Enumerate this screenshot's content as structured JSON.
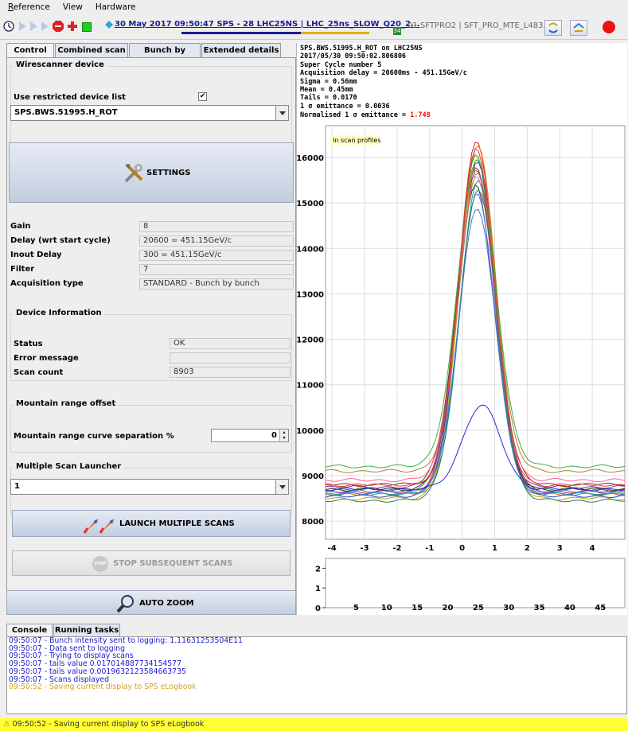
{
  "menu": [
    "Reference",
    "View",
    "Hardware"
  ],
  "toolbar": {
    "timestamp_link": "30 May 2017  09:50:47  SPS - 28 LHC25NS | LHC_25ns_SLOW_Q20_2...",
    "cycle_count": "34",
    "user_label": "01 SFTPRO2 | SFT_PRO_MTE_L483...",
    "icons": [
      "clock-icon",
      "play-icon",
      "step-icon",
      "pause-icon",
      "stop-icon",
      "add-icon",
      "green-square-icon",
      "swap-icon",
      "sync-icon",
      "record-icon"
    ],
    "record_color": "#ee1111"
  },
  "tabs": [
    "Control",
    "Combined scan",
    "Bunch by Bunch",
    "Extended details"
  ],
  "wirescanner": {
    "group_title": "Wirescanner device",
    "restricted_label": "Use restricted device list",
    "restricted_checked": true,
    "device_selected": "SPS.BWS.51995.H_ROT"
  },
  "settings_label": "SETTINGS",
  "params": [
    {
      "label": "Gain",
      "value": "8"
    },
    {
      "label": "Delay (wrt start cycle)",
      "value": "20600 = 451.15GeV/c"
    },
    {
      "label": "Inout Delay",
      "value": "300 = 451.15GeV/c"
    },
    {
      "label": "Filter",
      "value": "7"
    },
    {
      "label": "Acquisition type",
      "value": "STANDARD - Bunch by bunch"
    }
  ],
  "device_info": {
    "group_title": "Device Information",
    "rows": [
      {
        "label": "Status",
        "value": "OK"
      },
      {
        "label": "Error message",
        "value": ""
      },
      {
        "label": "Scan count",
        "value": "8903"
      }
    ]
  },
  "mountain": {
    "group_title": "Mountain range offset",
    "label": "Mountain range curve separation %",
    "value": "0"
  },
  "launcher": {
    "group_title": "Multiple Scan Launcher",
    "selected": "1",
    "launch_label": "LAUNCH MULTIPLE SCANS",
    "stop_label": "STOP SUBSEQUENT SCANS",
    "stop_icon_text": "STOP"
  },
  "auto_zoom_label": "AUTO ZOOM",
  "info": {
    "line1": "SPS.BWS.51995.H_ROT on LHC25NS",
    "line2": "2017/05/30 09:50:02.806806",
    "line3": "Super Cycle number 5",
    "line4": "Acquisition delay = 20600ms  - 451.15GeV/c",
    "line5": "Sigma = 0.56mm",
    "line6": "Mean = 0.45mm",
    "line7": "Tails = 0.0170",
    "line8": "1 σ emittance = 0.0036",
    "line9_label": "Normalised 1 σ emittance = ",
    "line9_value": "1.748",
    "value_color": "#ee1111"
  },
  "chart_data": [
    {
      "type": "line",
      "annotation": "In scan profiles",
      "xlim": [
        -4.2,
        5.0
      ],
      "ylim": [
        7600,
        16700
      ],
      "xticks": [
        -4,
        -3,
        -2,
        -1,
        0,
        1,
        2,
        3,
        4
      ],
      "yticks": [
        8000,
        9000,
        10000,
        11000,
        12000,
        13000,
        14000,
        15000,
        16000
      ],
      "grid": true,
      "series_note": "about 40 overlaid beam profile curves, near-Gaussian peak at x≈0.45, sigma≈0.56",
      "profiles": [
        {
          "base": 8650,
          "peak": 16350,
          "center": 0.45,
          "sigma": 0.56,
          "color": "#d02020"
        },
        {
          "base": 8600,
          "peak": 16300,
          "center": 0.48,
          "sigma": 0.56,
          "color": "#e07010"
        },
        {
          "base": 8700,
          "peak": 16100,
          "center": 0.42,
          "sigma": 0.55,
          "color": "#20a020"
        },
        {
          "base": 8550,
          "peak": 15900,
          "center": 0.46,
          "sigma": 0.57,
          "color": "#2040d0"
        },
        {
          "base": 8750,
          "peak": 15700,
          "center": 0.44,
          "sigma": 0.56,
          "color": "#a020a0"
        },
        {
          "base": 8600,
          "peak": 15500,
          "center": 0.5,
          "sigma": 0.55,
          "color": "#10a0a0"
        },
        {
          "base": 8800,
          "peak": 15800,
          "center": 0.43,
          "sigma": 0.58,
          "color": "#804010"
        },
        {
          "base": 8500,
          "peak": 16000,
          "center": 0.47,
          "sigma": 0.56,
          "color": "#d0a000"
        },
        {
          "base": 8700,
          "peak": 15400,
          "center": 0.41,
          "sigma": 0.57,
          "color": "#303030"
        },
        {
          "base": 8650,
          "peak": 15200,
          "center": 0.46,
          "sigma": 0.55,
          "color": "#6060ff"
        },
        {
          "base": 8900,
          "peak": 15600,
          "center": 0.44,
          "sigma": 0.56,
          "color": "#ff60a0"
        },
        {
          "base": 8450,
          "peak": 15300,
          "center": 0.49,
          "sigma": 0.57,
          "color": "#208060"
        },
        {
          "base": 9200,
          "peak": 15950,
          "center": 0.45,
          "sigma": 0.58,
          "color": "#40b040"
        },
        {
          "base": 9100,
          "peak": 15650,
          "center": 0.47,
          "sigma": 0.56,
          "color": "#b08040"
        },
        {
          "base": 8800,
          "peak": 16200,
          "center": 0.44,
          "sigma": 0.55,
          "color": "#e04040"
        },
        {
          "base": 8600,
          "peak": 14900,
          "center": 0.46,
          "sigma": 0.56,
          "color": "#4080c0"
        },
        {
          "base": 8700,
          "peak": 10550,
          "center": 0.6,
          "sigma": 0.58,
          "color": "#2a2ad0"
        }
      ]
    },
    {
      "type": "line",
      "xlim": [
        0,
        49
      ],
      "ylim": [
        0,
        2.5
      ],
      "xticks": [
        5,
        10,
        15,
        20,
        25,
        30,
        35,
        40,
        45
      ],
      "yticks": [
        0,
        1,
        2
      ],
      "grid": false
    }
  ],
  "console": {
    "tabs": [
      "Console",
      "Running tasks"
    ],
    "lines": [
      {
        "text": "09:50:07 - Bunch intensity sent to logging: 1.11631253504E11",
        "color": "#1a1acc"
      },
      {
        "text": "09:50:07 - Data sent to logging",
        "color": "#1a1acc"
      },
      {
        "text": "09:50:07 - Trying to display scans",
        "color": "#1a1acc"
      },
      {
        "text": "09:50:07 - tails value 0.017014887734154577",
        "color": "#1a1acc"
      },
      {
        "text": "09:50:07 - tails value 0.0019632123584663735",
        "color": "#1a1acc"
      },
      {
        "text": "09:50:07 - Scans displayed",
        "color": "#1a1acc"
      },
      {
        "text": "09:50:52 - Saving current display to SPS eLogbook",
        "color": "#d4a020"
      }
    ]
  },
  "status": "09:50:52 - Saving current display to SPS eLogbook",
  "colors": {
    "status_bg": "#ffff33",
    "accent": "#1a1a9a"
  }
}
